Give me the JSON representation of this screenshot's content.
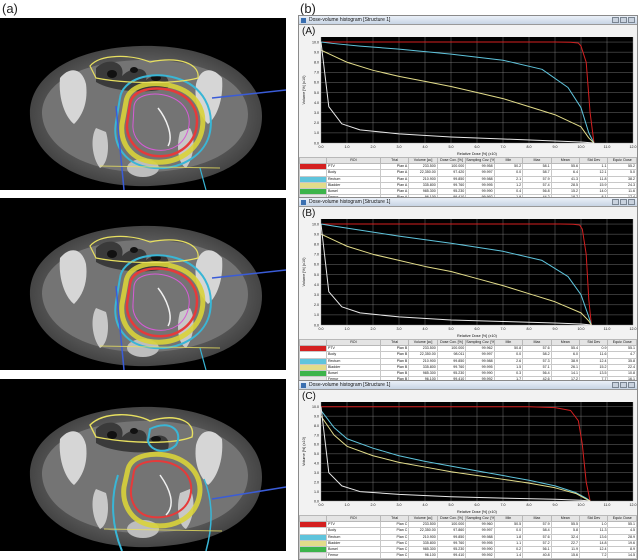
{
  "labels": {
    "a": "(a)",
    "b": "(b)"
  },
  "window_title": "Dose-volume histogram [Structure 1]",
  "colors": {
    "ptv": "#d42020",
    "oar_cyan": "#5fc4dc",
    "oar_yellow": "#e2dc8a",
    "oar_white": "#e8e8e8"
  },
  "table_header": [
    "",
    "ROI",
    "Trial",
    "Volume [cc]",
    "Dose Cov. [%]",
    "Sampling Cov. [%]",
    "Min",
    "Max",
    "Mean",
    "Std Dev",
    "Equiv. Dose"
  ],
  "panels": [
    {
      "tag": "(A)",
      "rows": [
        [
          "PTV",
          "Plan A",
          "233.500",
          "100.000",
          "99.958",
          "50.2",
          "58.1",
          "55.6",
          "1.1",
          "55.2"
        ],
        [
          "Body",
          "Plan A",
          "22,350.00",
          "97.420",
          "99.997",
          "0.0",
          "58.7",
          "6.4",
          "12.1",
          "5.0"
        ],
        [
          "Rectum",
          "Plan A",
          "210.900",
          "99.850",
          "99.988",
          "2.1",
          "57.9",
          "41.3",
          "11.8",
          "38.2"
        ],
        [
          "Bladder",
          "Plan A",
          "335.800",
          "99.760",
          "99.995",
          "1.2",
          "57.4",
          "28.5",
          "15.9",
          "24.3"
        ],
        [
          "Bowel",
          "Plan A",
          "985.300",
          "95.230",
          "99.990",
          "0.4",
          "56.8",
          "15.2",
          "14.0",
          "11.6"
        ],
        [
          "Femur",
          "Plan A",
          "96.100",
          "99.410",
          "99.992",
          "1.9",
          "44.2",
          "18.7",
          "8.1",
          "17.4"
        ]
      ]
    },
    {
      "tag": "(B)",
      "rows": [
        [
          "PTV",
          "Plan B",
          "233.500",
          "100.000",
          "99.962",
          "50.8",
          "57.6",
          "55.4",
          "0.9",
          "55.1"
        ],
        [
          "Body",
          "Plan B",
          "22,350.00",
          "98.011",
          "99.997",
          "0.0",
          "58.2",
          "6.0",
          "11.6",
          "4.7"
        ],
        [
          "Rectum",
          "Plan B",
          "210.900",
          "99.850",
          "99.988",
          "2.6",
          "57.3",
          "38.9",
          "12.4",
          "35.8"
        ],
        [
          "Bladder",
          "Plan B",
          "335.800",
          "99.760",
          "99.995",
          "1.5",
          "57.1",
          "26.1",
          "15.2",
          "22.4"
        ],
        [
          "Bowel",
          "Plan B",
          "985.300",
          "95.230",
          "99.990",
          "0.3",
          "56.4",
          "14.1",
          "13.5",
          "10.8"
        ],
        [
          "Femur",
          "Plan B",
          "96.100",
          "99.410",
          "99.992",
          "1.7",
          "42.6",
          "17.2",
          "7.7",
          "16.1"
        ]
      ]
    },
    {
      "tag": "(C)",
      "rows": [
        [
          "PTV",
          "Plan C",
          "233.500",
          "100.000",
          "99.960",
          "50.5",
          "57.9",
          "55.5",
          "1.0",
          "55.1"
        ],
        [
          "Body",
          "Plan C",
          "22,350.00",
          "97.860",
          "99.997",
          "0.0",
          "58.4",
          "5.8",
          "11.3",
          "4.5"
        ],
        [
          "Rectum",
          "Plan C",
          "210.900",
          "99.850",
          "99.988",
          "1.8",
          "57.6",
          "32.4",
          "13.6",
          "28.9"
        ],
        [
          "Bladder",
          "Plan C",
          "335.800",
          "99.760",
          "99.995",
          "1.1",
          "57.2",
          "22.7",
          "14.8",
          "19.6"
        ],
        [
          "Bowel",
          "Plan C",
          "985.300",
          "95.230",
          "99.990",
          "0.2",
          "56.1",
          "11.9",
          "12.4",
          "8.9"
        ],
        [
          "Femur",
          "Plan C",
          "96.100",
          "99.410",
          "99.992",
          "1.4",
          "40.8",
          "15.6",
          "7.2",
          "14.5"
        ]
      ]
    }
  ],
  "chart_data": [
    {
      "type": "line",
      "title": "(A)",
      "xlabel": "Relative Dose [%] (x10)",
      "ylabel": "Volume [%] (x10)",
      "xlim": [
        0,
        12
      ],
      "ylim": [
        0,
        10.5
      ],
      "xticks": [
        "0.0",
        "1.0",
        "2.0",
        "3.0",
        "4.0",
        "5.0",
        "6.0",
        "7.0",
        "8.0",
        "9.0",
        "10.0",
        "11.0",
        "12.0"
      ],
      "yticks": [
        "0.0",
        "1.0",
        "2.0",
        "3.0",
        "4.0",
        "5.0",
        "6.0",
        "7.0",
        "8.0",
        "9.0",
        "10.0"
      ],
      "series": [
        {
          "color": "#d42020",
          "x": [
            0,
            9.0,
            9.6,
            9.9,
            10.0,
            10.2,
            10.35,
            10.5
          ],
          "y": [
            10,
            10,
            9.98,
            9.9,
            9.6,
            8.0,
            3.0,
            0
          ]
        },
        {
          "color": "#5fc4dc",
          "x": [
            0,
            0.5,
            1.5,
            3,
            5,
            7,
            8.5,
            9.5,
            10.0,
            10.3,
            10.5
          ],
          "y": [
            10,
            9.85,
            9.6,
            9.3,
            8.8,
            8.2,
            7.3,
            5.5,
            3.5,
            1.0,
            0
          ]
        },
        {
          "color": "#e2dc8a",
          "x": [
            0,
            0.5,
            1,
            2,
            3,
            4,
            5,
            6,
            7,
            8,
            9,
            10,
            10.3,
            10.5
          ],
          "y": [
            9.2,
            8.6,
            8.0,
            7.2,
            6.6,
            6.1,
            5.6,
            5.0,
            4.4,
            3.6,
            2.8,
            1.6,
            0.5,
            0
          ]
        },
        {
          "color": "#e8e8e8",
          "x": [
            0,
            0.3,
            0.8,
            1.5,
            3,
            5,
            7,
            9,
            10,
            10.5
          ],
          "y": [
            10,
            3.6,
            1.9,
            1.3,
            0.9,
            0.6,
            0.4,
            0.2,
            0.1,
            0
          ]
        }
      ]
    },
    {
      "type": "line",
      "title": "(B)",
      "xlabel": "Relative Dose [%] (x10)",
      "ylabel": "Volume [%] (x10)",
      "xlim": [
        0,
        12
      ],
      "ylim": [
        0,
        10.5
      ],
      "xticks": [
        "0.0",
        "1.0",
        "2.0",
        "3.0",
        "4.0",
        "5.0",
        "6.0",
        "7.0",
        "8.0",
        "9.0",
        "10.0",
        "11.0",
        "12.0"
      ],
      "yticks": [
        "0.0",
        "1.0",
        "2.0",
        "3.0",
        "4.0",
        "5.0",
        "6.0",
        "7.0",
        "8.0",
        "9.0",
        "10.0"
      ],
      "series": [
        {
          "color": "#d42020",
          "x": [
            0,
            9.2,
            9.7,
            9.95,
            10.05,
            10.2,
            10.3,
            10.4
          ],
          "y": [
            10,
            10,
            9.98,
            9.9,
            9.5,
            7.0,
            2.5,
            0
          ]
        },
        {
          "color": "#5fc4dc",
          "x": [
            0,
            0.5,
            1.5,
            3,
            5,
            7,
            8.5,
            9.5,
            10.0,
            10.3,
            10.4
          ],
          "y": [
            10,
            9.8,
            9.4,
            8.8,
            8.1,
            7.3,
            6.4,
            4.8,
            3.0,
            0.8,
            0
          ]
        },
        {
          "color": "#e2dc8a",
          "x": [
            0,
            0.5,
            1,
            2,
            3,
            4,
            5,
            6,
            7,
            8,
            9,
            10,
            10.3,
            10.4
          ],
          "y": [
            9.0,
            8.4,
            7.8,
            7.0,
            6.4,
            5.8,
            5.3,
            4.6,
            3.9,
            3.1,
            2.3,
            1.2,
            0.4,
            0
          ]
        },
        {
          "color": "#e8e8e8",
          "x": [
            0,
            0.3,
            0.8,
            1.5,
            3,
            5,
            7,
            9,
            10,
            10.4
          ],
          "y": [
            10,
            3.3,
            1.8,
            1.2,
            0.8,
            0.5,
            0.35,
            0.2,
            0.1,
            0
          ]
        }
      ]
    },
    {
      "type": "line",
      "title": "(C)",
      "xlabel": "Relative Dose [%] (x10)",
      "ylabel": "Volume [%] (x10)",
      "xlim": [
        0,
        12
      ],
      "ylim": [
        0,
        10.5
      ],
      "xticks": [
        "0.0",
        "1.0",
        "2.0",
        "3.0",
        "4.0",
        "5.0",
        "6.0",
        "7.0",
        "8.0",
        "9.0",
        "10.0",
        "11.0",
        "12.0"
      ],
      "yticks": [
        "0.0",
        "1.0",
        "2.0",
        "3.0",
        "4.0",
        "5.0",
        "6.0",
        "7.0",
        "8.0",
        "9.0",
        "10.0"
      ],
      "series": [
        {
          "color": "#d42020",
          "x": [
            0,
            8.0,
            9.0,
            9.6,
            9.9,
            10.05,
            10.2,
            10.35
          ],
          "y": [
            10,
            10,
            9.9,
            9.6,
            8.5,
            6.0,
            2.0,
            0
          ]
        },
        {
          "color": "#5fc4dc",
          "x": [
            0,
            0.5,
            1,
            2,
            3,
            4,
            5,
            6,
            7,
            8,
            9,
            9.8,
            10.2,
            10.35
          ],
          "y": [
            9.6,
            7.8,
            6.6,
            5.6,
            4.8,
            4.2,
            3.7,
            3.2,
            2.7,
            2.2,
            1.6,
            0.9,
            0.3,
            0
          ]
        },
        {
          "color": "#e2dc8a",
          "x": [
            0,
            0.5,
            1,
            2,
            3,
            4,
            5,
            6,
            7,
            8,
            9,
            9.8,
            10.2,
            10.35
          ],
          "y": [
            9.0,
            7.0,
            5.8,
            4.8,
            4.1,
            3.6,
            3.1,
            2.7,
            2.3,
            1.9,
            1.4,
            0.8,
            0.2,
            0
          ]
        },
        {
          "color": "#e8e8e8",
          "x": [
            0,
            0.3,
            0.8,
            1.5,
            3,
            5,
            7,
            9,
            10,
            10.35
          ],
          "y": [
            10,
            3.0,
            1.6,
            1.0,
            0.7,
            0.45,
            0.3,
            0.18,
            0.08,
            0
          ]
        }
      ]
    }
  ]
}
